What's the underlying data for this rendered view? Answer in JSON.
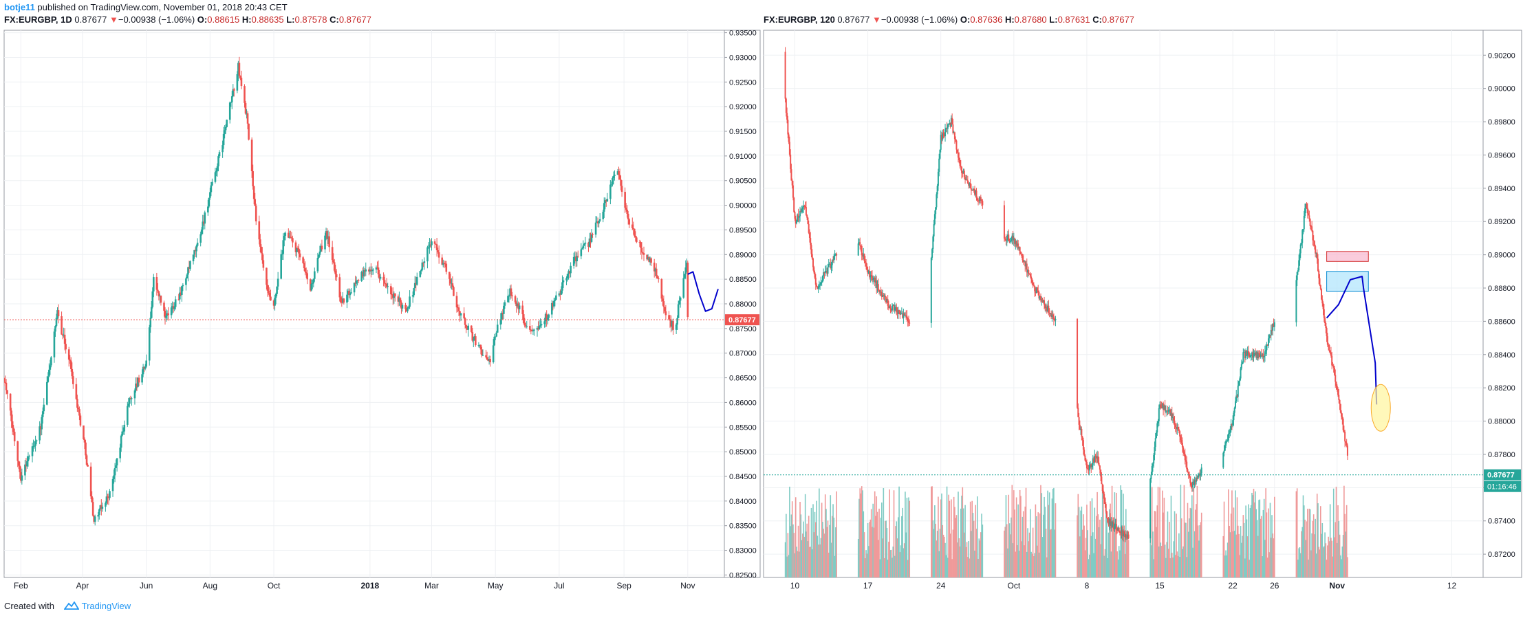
{
  "publish_line": {
    "user": "botje11",
    "text": " published on TradingView.com, November 01, 2018 20:43 CET"
  },
  "footer": {
    "created_with": "Created with",
    "brand": "TradingView"
  },
  "chart_data": [
    {
      "type": "candlestick",
      "header": {
        "symbol": "FX:EURGBP, 1D",
        "last": "0.87677",
        "arrow": "▼",
        "change": "−0.00938 (−1.06%)",
        "o_label": "O:",
        "o": "0.88615",
        "h_label": "H:",
        "h": "0.88635",
        "l_label": "L:",
        "l": "0.87578",
        "c_label": "C:",
        "c": "0.87677"
      },
      "y_ticks": [
        "0.93500",
        "0.93000",
        "0.92500",
        "0.92000",
        "0.91500",
        "0.91000",
        "0.90500",
        "0.90000",
        "0.89500",
        "0.89000",
        "0.88500",
        "0.88000",
        "0.87500",
        "0.87000",
        "0.86500",
        "0.86000",
        "0.85500",
        "0.85000",
        "0.84500",
        "0.84000",
        "0.83500",
        "0.83000",
        "0.82500"
      ],
      "ylim": [
        0.8245,
        0.9355
      ],
      "x_ticks": [
        {
          "label": "Feb",
          "x": "2017-02-01"
        },
        {
          "label": "Apr",
          "x": "2017-04-01"
        },
        {
          "label": "Jun",
          "x": "2017-06-01"
        },
        {
          "label": "Aug",
          "x": "2017-08-01"
        },
        {
          "label": "Oct",
          "x": "2017-10-01"
        },
        {
          "label": "2018",
          "x": "2018-01-01",
          "bold": true
        },
        {
          "label": "Mar",
          "x": "2018-03-01"
        },
        {
          "label": "May",
          "x": "2018-05-01"
        },
        {
          "label": "Jul",
          "x": "2018-07-01"
        },
        {
          "label": "Sep",
          "x": "2018-09-01"
        },
        {
          "label": "Nov",
          "x": "2018-11-01"
        }
      ],
      "xlim": [
        "2017-01-16",
        "2018-12-06"
      ],
      "price_path": [
        [
          "2017-01-16",
          0.865
        ],
        [
          "2017-02-01",
          0.845
        ],
        [
          "2017-02-20",
          0.855
        ],
        [
          "2017-03-08",
          0.878
        ],
        [
          "2017-03-20",
          0.868
        ],
        [
          "2017-04-04",
          0.85
        ],
        [
          "2017-04-12",
          0.836
        ],
        [
          "2017-04-28",
          0.842
        ],
        [
          "2017-05-15",
          0.86
        ],
        [
          "2017-06-01",
          0.868
        ],
        [
          "2017-06-08",
          0.885
        ],
        [
          "2017-06-20",
          0.877
        ],
        [
          "2017-07-05",
          0.883
        ],
        [
          "2017-07-20",
          0.892
        ],
        [
          "2017-08-10",
          0.91
        ],
        [
          "2017-08-28",
          0.928
        ],
        [
          "2017-09-05",
          0.918
        ],
        [
          "2017-09-15",
          0.895
        ],
        [
          "2017-09-25",
          0.882
        ],
        [
          "2017-10-01",
          0.879
        ],
        [
          "2017-10-12",
          0.895
        ],
        [
          "2017-10-25",
          0.89
        ],
        [
          "2017-11-05",
          0.883
        ],
        [
          "2017-11-20",
          0.895
        ],
        [
          "2017-12-05",
          0.88
        ],
        [
          "2017-12-20",
          0.885
        ],
        [
          "2018-01-05",
          0.888
        ],
        [
          "2018-01-20",
          0.882
        ],
        [
          "2018-02-05",
          0.879
        ],
        [
          "2018-02-15",
          0.885
        ],
        [
          "2018-03-01",
          0.893
        ],
        [
          "2018-03-15",
          0.887
        ],
        [
          "2018-03-28",
          0.878
        ],
        [
          "2018-04-10",
          0.873
        ],
        [
          "2018-04-25",
          0.868
        ],
        [
          "2018-05-05",
          0.877
        ],
        [
          "2018-05-15",
          0.883
        ],
        [
          "2018-06-01",
          0.875
        ],
        [
          "2018-06-15",
          0.876
        ],
        [
          "2018-07-01",
          0.882
        ],
        [
          "2018-07-15",
          0.889
        ],
        [
          "2018-07-28",
          0.892
        ],
        [
          "2018-08-10",
          0.898
        ],
        [
          "2018-08-25",
          0.908
        ],
        [
          "2018-09-05",
          0.897
        ],
        [
          "2018-09-15",
          0.892
        ],
        [
          "2018-10-01",
          0.887
        ],
        [
          "2018-10-12",
          0.877
        ],
        [
          "2018-10-20",
          0.875
        ],
        [
          "2018-10-25",
          0.882
        ],
        [
          "2018-10-31",
          0.888
        ],
        [
          "2018-11-01",
          0.8768
        ]
      ],
      "last_price_label": "0.87677",
      "last_price": 0.87677,
      "projection": [
        [
          "2018-11-01",
          0.886
        ],
        [
          "2018-11-06",
          0.8865
        ],
        [
          "2018-11-12",
          0.882
        ],
        [
          "2018-11-18",
          0.8785
        ],
        [
          "2018-11-24",
          0.879
        ],
        [
          "2018-11-30",
          0.883
        ]
      ],
      "colors": {
        "up": "#26a69a",
        "down": "#ef5350",
        "projection": "#0000cc",
        "last": "#ef5350"
      }
    },
    {
      "type": "candlestick",
      "header": {
        "symbol": "FX:EURGBP, 120",
        "last": "0.87677",
        "arrow": "▼",
        "change": "−0.00938 (−1.06%)",
        "o_label": "O:",
        "o": "0.87636",
        "h_label": "H:",
        "h": "0.87680",
        "l_label": "L:",
        "l": "0.87631",
        "c_label": "C:",
        "c": "0.87677"
      },
      "y_ticks": [
        "0.90200",
        "0.90000",
        "0.89800",
        "0.89600",
        "0.89400",
        "0.89200",
        "0.89000",
        "0.88800",
        "0.88600",
        "0.88400",
        "0.88200",
        "0.88000",
        "0.87800",
        "0.87600",
        "0.87400",
        "0.87200"
      ],
      "ylim": [
        0.8706,
        0.9035
      ],
      "x_ticks": [
        {
          "label": "10",
          "x": "2018-09-10"
        },
        {
          "label": "17",
          "x": "2018-09-17"
        },
        {
          "label": "24",
          "x": "2018-09-24"
        },
        {
          "label": "Oct",
          "x": "2018-10-01"
        },
        {
          "label": "8",
          "x": "2018-10-08"
        },
        {
          "label": "15",
          "x": "2018-10-15"
        },
        {
          "label": "22",
          "x": "2018-10-22"
        },
        {
          "label": "26",
          "x": "2018-10-26"
        },
        {
          "label": "Nov",
          "x": "2018-11-01",
          "bold": true
        },
        {
          "label": "12",
          "x": "2018-11-12"
        }
      ],
      "xlim": [
        "2018-09-07",
        "2018-11-15"
      ],
      "price_path": [
        [
          "2018-09-07",
          0.9022
        ],
        [
          "2018-09-08",
          0.899
        ],
        [
          "2018-09-09",
          0.9
        ],
        [
          "2018-09-10",
          0.892
        ],
        [
          "2018-09-11",
          0.893
        ],
        [
          "2018-09-12",
          0.888
        ],
        [
          "2018-09-14",
          0.89
        ],
        [
          "2018-09-16",
          0.891
        ],
        [
          "2018-09-17",
          0.889
        ],
        [
          "2018-09-19",
          0.887
        ],
        [
          "2018-09-21",
          0.886
        ],
        [
          "2018-09-22",
          0.885
        ],
        [
          "2018-09-23",
          0.889
        ],
        [
          "2018-09-24",
          0.897
        ],
        [
          "2018-09-25",
          0.898
        ],
        [
          "2018-09-26",
          0.895
        ],
        [
          "2018-09-28",
          0.893
        ],
        [
          "2018-09-30",
          0.891
        ],
        [
          "2018-10-01",
          0.891
        ],
        [
          "2018-10-03",
          0.888
        ],
        [
          "2018-10-05",
          0.886
        ],
        [
          "2018-10-06",
          0.884
        ],
        [
          "2018-10-07",
          0.881
        ],
        [
          "2018-10-08",
          0.877
        ],
        [
          "2018-10-09",
          0.878
        ],
        [
          "2018-10-10",
          0.874
        ],
        [
          "2018-10-12",
          0.873
        ],
        [
          "2018-10-13",
          0.874
        ],
        [
          "2018-10-14",
          0.876
        ],
        [
          "2018-10-15",
          0.881
        ],
        [
          "2018-10-16",
          0.8805
        ],
        [
          "2018-10-17",
          0.879
        ],
        [
          "2018-10-18",
          0.876
        ],
        [
          "2018-10-19",
          0.877
        ],
        [
          "2018-10-20",
          0.878
        ],
        [
          "2018-10-21",
          0.878
        ],
        [
          "2018-10-22",
          0.88
        ],
        [
          "2018-10-23",
          0.884
        ],
        [
          "2018-10-24",
          0.884
        ],
        [
          "2018-10-25",
          0.884
        ],
        [
          "2018-10-26",
          0.886
        ],
        [
          "2018-10-27",
          0.887
        ],
        [
          "2018-10-28",
          0.888
        ],
        [
          "2018-10-29",
          0.893
        ],
        [
          "2018-10-30",
          0.89
        ],
        [
          "2018-10-31",
          0.885
        ],
        [
          "2018-11-01",
          0.882
        ],
        [
          "2018-11-02",
          0.878
        ],
        [
          "2018-11-03",
          0.8768
        ]
      ],
      "volume_seed": 7,
      "last_price_label": "0.87677",
      "last_price": 0.87677,
      "countdown": "01:16:46",
      "zones": [
        {
          "name": "resistance-zone",
          "x0": "2018-10-31",
          "x1": "2018-11-04",
          "y0": 0.8902,
          "y1": 0.8896,
          "fill": "#f8bbd0",
          "stroke": "#d32f2f"
        },
        {
          "name": "supply-zone",
          "x0": "2018-10-31",
          "x1": "2018-11-04",
          "y0": 0.889,
          "y1": 0.8878,
          "fill": "#b3e5fc",
          "stroke": "#0288d1"
        }
      ],
      "projection": [
        [
          "2018-10-31",
          0.8862
        ],
        [
          "2018-11-01",
          0.887
        ],
        [
          "2018-11-02",
          0.8885
        ],
        [
          "2018-11-03",
          0.8887
        ],
        [
          "2018-11-03",
          0.888
        ],
        [
          "2018-11-04",
          0.8835
        ],
        [
          "2018-11-04",
          0.881
        ]
      ],
      "target_ellipse": {
        "x": "2018-11-04",
        "y": 0.8808,
        "fill": "#fff59d",
        "stroke": "#f9a825"
      },
      "colors": {
        "up": "#26a69a",
        "down": "#ef5350",
        "projection": "#0000cc",
        "last": "#26a69a",
        "vol_up": "#80cbc4",
        "vol_down": "#ef9a9a"
      }
    }
  ]
}
